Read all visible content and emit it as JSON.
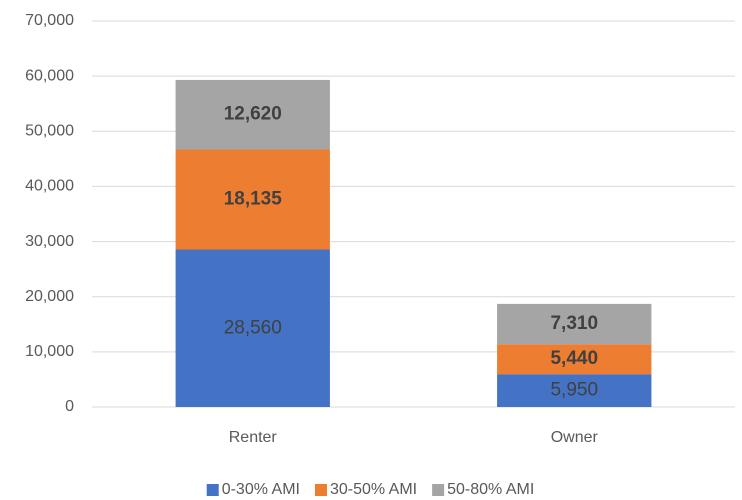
{
  "chart_data": {
    "type": "bar",
    "stacked": true,
    "categories": [
      "Renter",
      "Owner"
    ],
    "series": [
      {
        "name": "0-30% AMI",
        "color": "#4472c4",
        "values": [
          28560,
          5950
        ],
        "value_labels": [
          "28,560",
          "5,950"
        ]
      },
      {
        "name": "30-50% AMI",
        "color": "#ed7d31",
        "values": [
          18135,
          5440
        ],
        "value_labels": [
          "18,135",
          "5,440"
        ]
      },
      {
        "name": "50-80% AMI",
        "color": "#a5a5a5",
        "values": [
          12620,
          7310
        ],
        "value_labels": [
          "12,620",
          "7,310"
        ]
      }
    ],
    "ylim": [
      0,
      70000
    ],
    "yticks": [
      0,
      {
        "value": 10000,
        "label": "10,000"
      },
      {
        "value": 20000,
        "label": "20,000"
      },
      {
        "value": 30000,
        "label": "30,000"
      },
      {
        "value": 40000,
        "label": "40,000"
      },
      {
        "value": 50000,
        "label": "50,000"
      },
      {
        "value": 60000,
        "label": "60,000"
      },
      {
        "value": 70000,
        "label": "70,000"
      }
    ],
    "grid": true,
    "legend": "bottom"
  }
}
